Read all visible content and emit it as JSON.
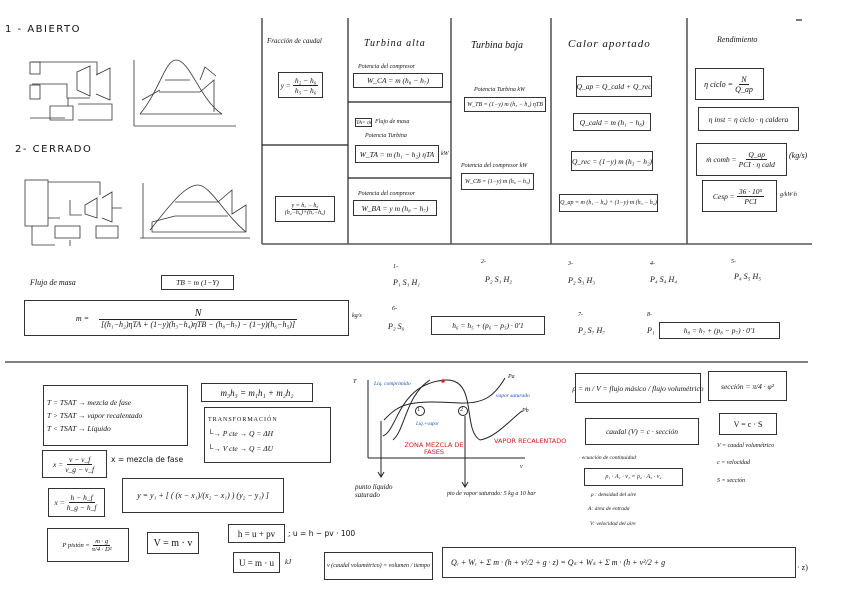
{
  "top": {
    "abierto": "1 - ABIERTO",
    "cerrado": "2- CERRADO"
  },
  "table": {
    "fraccion": {
      "header": "Fracción de caudal",
      "f1_lhs": "y =",
      "f1_num": "h₂ − h₆",
      "f1_den": "h₅ − h₆",
      "f2_num": "y =   h₇ − h₆",
      "f2_den": "(h₂−h₆)+(h₇−h₆)"
    },
    "turbina_alta": {
      "header": "Turbina alta",
      "pot_comp_label": "Potencia del compresor",
      "pot_comp": "W_CA = m (h₈ − h₇)",
      "flujo_tag": "TA= ṁ",
      "flujo_label": "Flujo de masa",
      "pot_turb_label": "Potencia Turbina",
      "pot_turb": "W_TA = m (h₁ − h₂) ηTA",
      "kw": "kW",
      "pot_comp2_label": "Potencia del compresor",
      "pot_comp2": "W_BA = y m (h₈ − h₇)"
    },
    "turbina_baja": {
      "header": "Turbina baja",
      "pot_turb_label": "Potencia Turbina kW",
      "pot_turb": "W_TB = (1−y) m (h₃ − h₄) ηTB",
      "pot_comp_label": "Potencia del compresor kW",
      "pot_comp": "W_CB = (1−y) m (h₆ − h₅)"
    },
    "calor": {
      "header": "Calor aportado",
      "q_ap": "Q_ap = Q_cald + Q_rec",
      "q_cald": "Q_cald = m (h₁ − h₈)",
      "q_rec": "Q_rec = (1−y) m (h₃ − h₂)",
      "q_ap_full": "Q_ap = m (h₁ − h₈) + (1−y) m (h₃ − h₂)"
    },
    "rendimiento": {
      "header": "Rendimiento",
      "ciclo_lhs": "η ciclo =",
      "ciclo_num": "N",
      "ciclo_den": "Q_ap",
      "inst": "η inst = η ciclo · η caldera",
      "comb_lhs": "ṁ comb =",
      "comb_num": "Q_ap",
      "comb_den": "PCI · η cald",
      "comb_unit": "(kg/s)",
      "cesp_lhs": "Cesp =",
      "cesp_num": "36 · 10⁵",
      "cesp_den": "PCI",
      "cesp_unit": "g/kW·h"
    }
  },
  "middle": {
    "flujo_label": "Flujo de masa",
    "tb": "TB = m (1−Y)",
    "m_lhs": "m =",
    "m_num": "N",
    "m_den": "[(h₁−h₂)ηTA + (1−y)(h₃−h₄)ηTB − (h₈−h₇) − (1−y)(h₆−h₅)]",
    "m_unit": "kg/s",
    "states": [
      {
        "num": "1-",
        "vals": "P₁  S₁  H₁"
      },
      {
        "num": "2-",
        "vals": "P₂  S₁  H₂"
      },
      {
        "num": "3-",
        "vals": "P₂  S₃  H₃"
      },
      {
        "num": "4-",
        "vals": "P₄  S₄  H₄"
      },
      {
        "num": "5-",
        "vals": "P₄  S₅  H₅"
      },
      {
        "num": "6-",
        "vals": "P₂  S₆"
      },
      {
        "num": "7-",
        "vals": "P₂  S₇  H₇"
      },
      {
        "num": "8-",
        "vals": "P₁"
      }
    ],
    "h6": "h₆ = h₅ + (p₆ − p₅) · 0'1",
    "h8": "h₈ = h₇ + (p₈ − p₇) · 0'1"
  },
  "bottom": {
    "tsat": [
      "T = TSAT  → mezcla de fase",
      "T > TSAT  → vapor recalentado",
      "T < TSAT  → Líquido"
    ],
    "mix": "m₃h₃ = m₁h₁ + m₂h₂",
    "transf_title": "TRANSFORMACIÓN",
    "transf_p": "└→ P cte   →  Q = ΔH",
    "transf_v": "└→ V cte   →  Q = ΔU",
    "x1_lhs": "x =",
    "x1_num": "v − v_f",
    "x1_den": "v_g − v_f",
    "x_label": "x = mezcla de fase",
    "x2_lhs": "x =",
    "x2_num": "h − h_f",
    "x2_den": "h_g − h_f",
    "interp": "y = y₁ + [ ( (x − x₁)/(x₂ − x₁) ) (y₂ − y₁) ]",
    "piston_lhs": "P pistón =",
    "piston_num": "m · g",
    "piston_den": "π/4 · D²",
    "vmv": "V = m · v",
    "h_eq": "h = u + pv",
    "u_eq": "; u = h − pv · 100",
    "U_eq": "U = m · u",
    "kj": "kJ",
    "caudal_vol": "v (caudal volumétrico) = volumen / tiempo",
    "diagram": {
      "T": "T",
      "v": "v",
      "liq_comp": "Líq. comprimido",
      "pa": "Pa",
      "pb": "Pb",
      "vapor_sat": "vapor saturado",
      "liq_vapor": "Líq.+vapor",
      "zona": "ZONA MEZCLA DE FASES",
      "vapor_rec": "VAPOR RECALENTADO",
      "c1": "1",
      "c2": "2",
      "pto_liq": "punto líquido saturado",
      "pto_vap": "pto de vapor saturado: 5 kg a 10 bar"
    },
    "rho": "ρ = m / V = flujo másico / flujo volumétrico",
    "seccion": "sección = π/4 · φ²",
    "caudal": "caudal (V) = c · sección",
    "V_eq": "V = c · S",
    "V_defs": [
      "V = caudal volumétrico",
      "c = velocidad",
      "S = sección"
    ],
    "continuidad_label": "· ecuación de continuidad",
    "continuidad": "ρ₁ · A₁ · v₁ = ρ₂ · A₂ · v₂",
    "cont_defs": [
      "ρ : densidad del aire",
      "A: área de entrada",
      "V: velocidad del aire"
    ],
    "energy": "Qₑ + Wₑ + Σ m · (h + v²/2 + g · z) = Qₛ + Wₛ + Σ m · (h + v²/2 + g",
    "energy_tail": "· z)"
  }
}
